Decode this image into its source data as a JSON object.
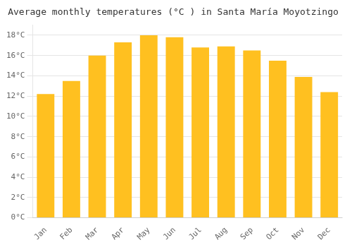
{
  "chart_data": {
    "type": "bar",
    "title": "Average monthly temperatures (°C ) in Santa María Moyotzingo",
    "categories": [
      "Jan",
      "Feb",
      "Mar",
      "Apr",
      "May",
      "Jun",
      "Jul",
      "Aug",
      "Sep",
      "Oct",
      "Nov",
      "Dec"
    ],
    "values": [
      12.2,
      13.5,
      16.0,
      17.3,
      18.0,
      17.8,
      16.8,
      16.9,
      16.5,
      15.5,
      13.9,
      12.4
    ],
    "color": "#FFC020",
    "ylim": [
      0,
      19
    ],
    "yticks": [
      {
        "value": 0,
        "label": "0°C"
      },
      {
        "value": 2,
        "label": "2°C"
      },
      {
        "value": 4,
        "label": "4°C"
      },
      {
        "value": 6,
        "label": "6°C"
      },
      {
        "value": 8,
        "label": "8°C"
      },
      {
        "value": 10,
        "label": "10°C"
      },
      {
        "value": 12,
        "label": "12°C"
      },
      {
        "value": 14,
        "label": "14°C"
      },
      {
        "value": 16,
        "label": "16°C"
      },
      {
        "value": 18,
        "label": "18°C"
      }
    ],
    "grid": true
  }
}
